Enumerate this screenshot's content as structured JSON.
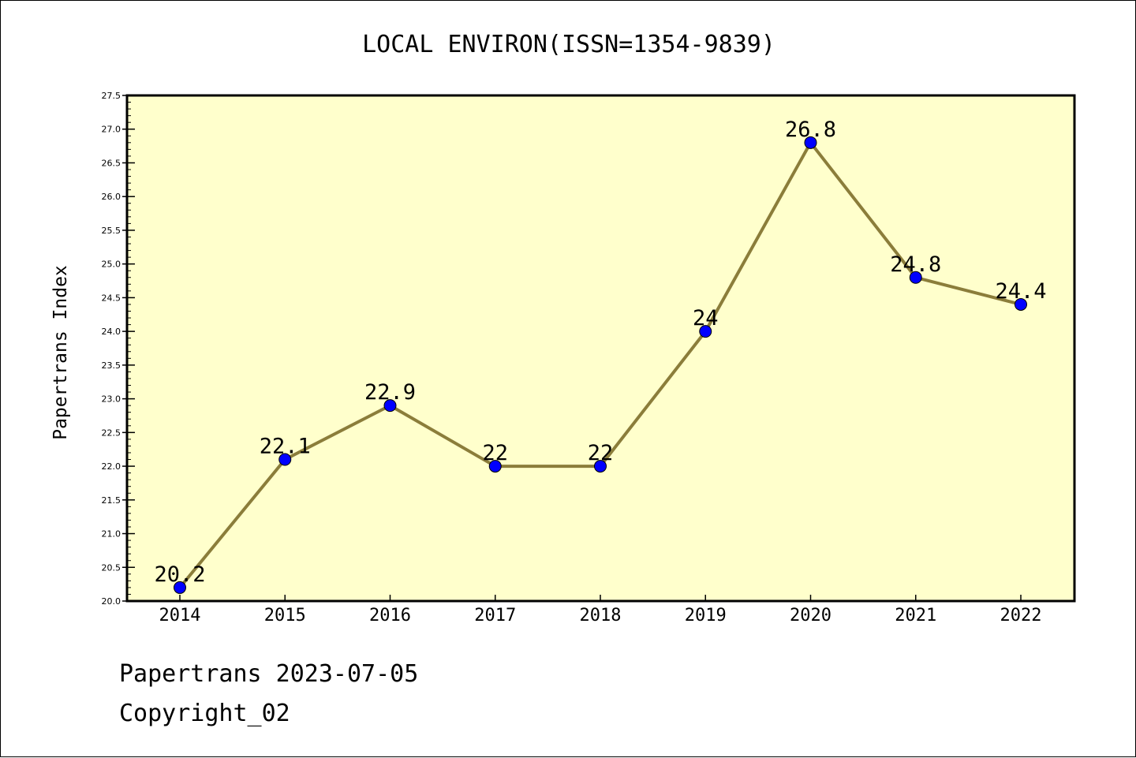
{
  "chart_data": {
    "type": "line",
    "title": "LOCAL ENVIRON(ISSN=1354-9839)",
    "xlabel": "",
    "ylabel": "Papertrans Index",
    "categories": [
      "2014",
      "2015",
      "2016",
      "2017",
      "2018",
      "2019",
      "2020",
      "2021",
      "2022"
    ],
    "series": [
      {
        "values": [
          20.2,
          22.1,
          22.9,
          22,
          22,
          24,
          26.8,
          24.8,
          24.4
        ],
        "data_labels": [
          "20.2",
          "22.1",
          "22.9",
          "22",
          "22",
          "24",
          "26.8",
          "24.8",
          "24.4"
        ]
      }
    ],
    "ylim": [
      20.0,
      27.5
    ],
    "yticks": [
      "20.0",
      "20.5",
      "21.0",
      "21.5",
      "22.0",
      "22.5",
      "23.0",
      "23.5",
      "24.0",
      "24.5",
      "25.0",
      "25.5",
      "26.0",
      "26.5",
      "27.0",
      "27.5"
    ],
    "grid": false,
    "legend": "none"
  },
  "footer": {
    "date_text": "Papertrans 2023-07-05",
    "copyright_text": "Copyright_02"
  },
  "colors": {
    "plot_background": "#ffffcc",
    "line": "#8b7d3a",
    "marker": "#0000ff"
  }
}
